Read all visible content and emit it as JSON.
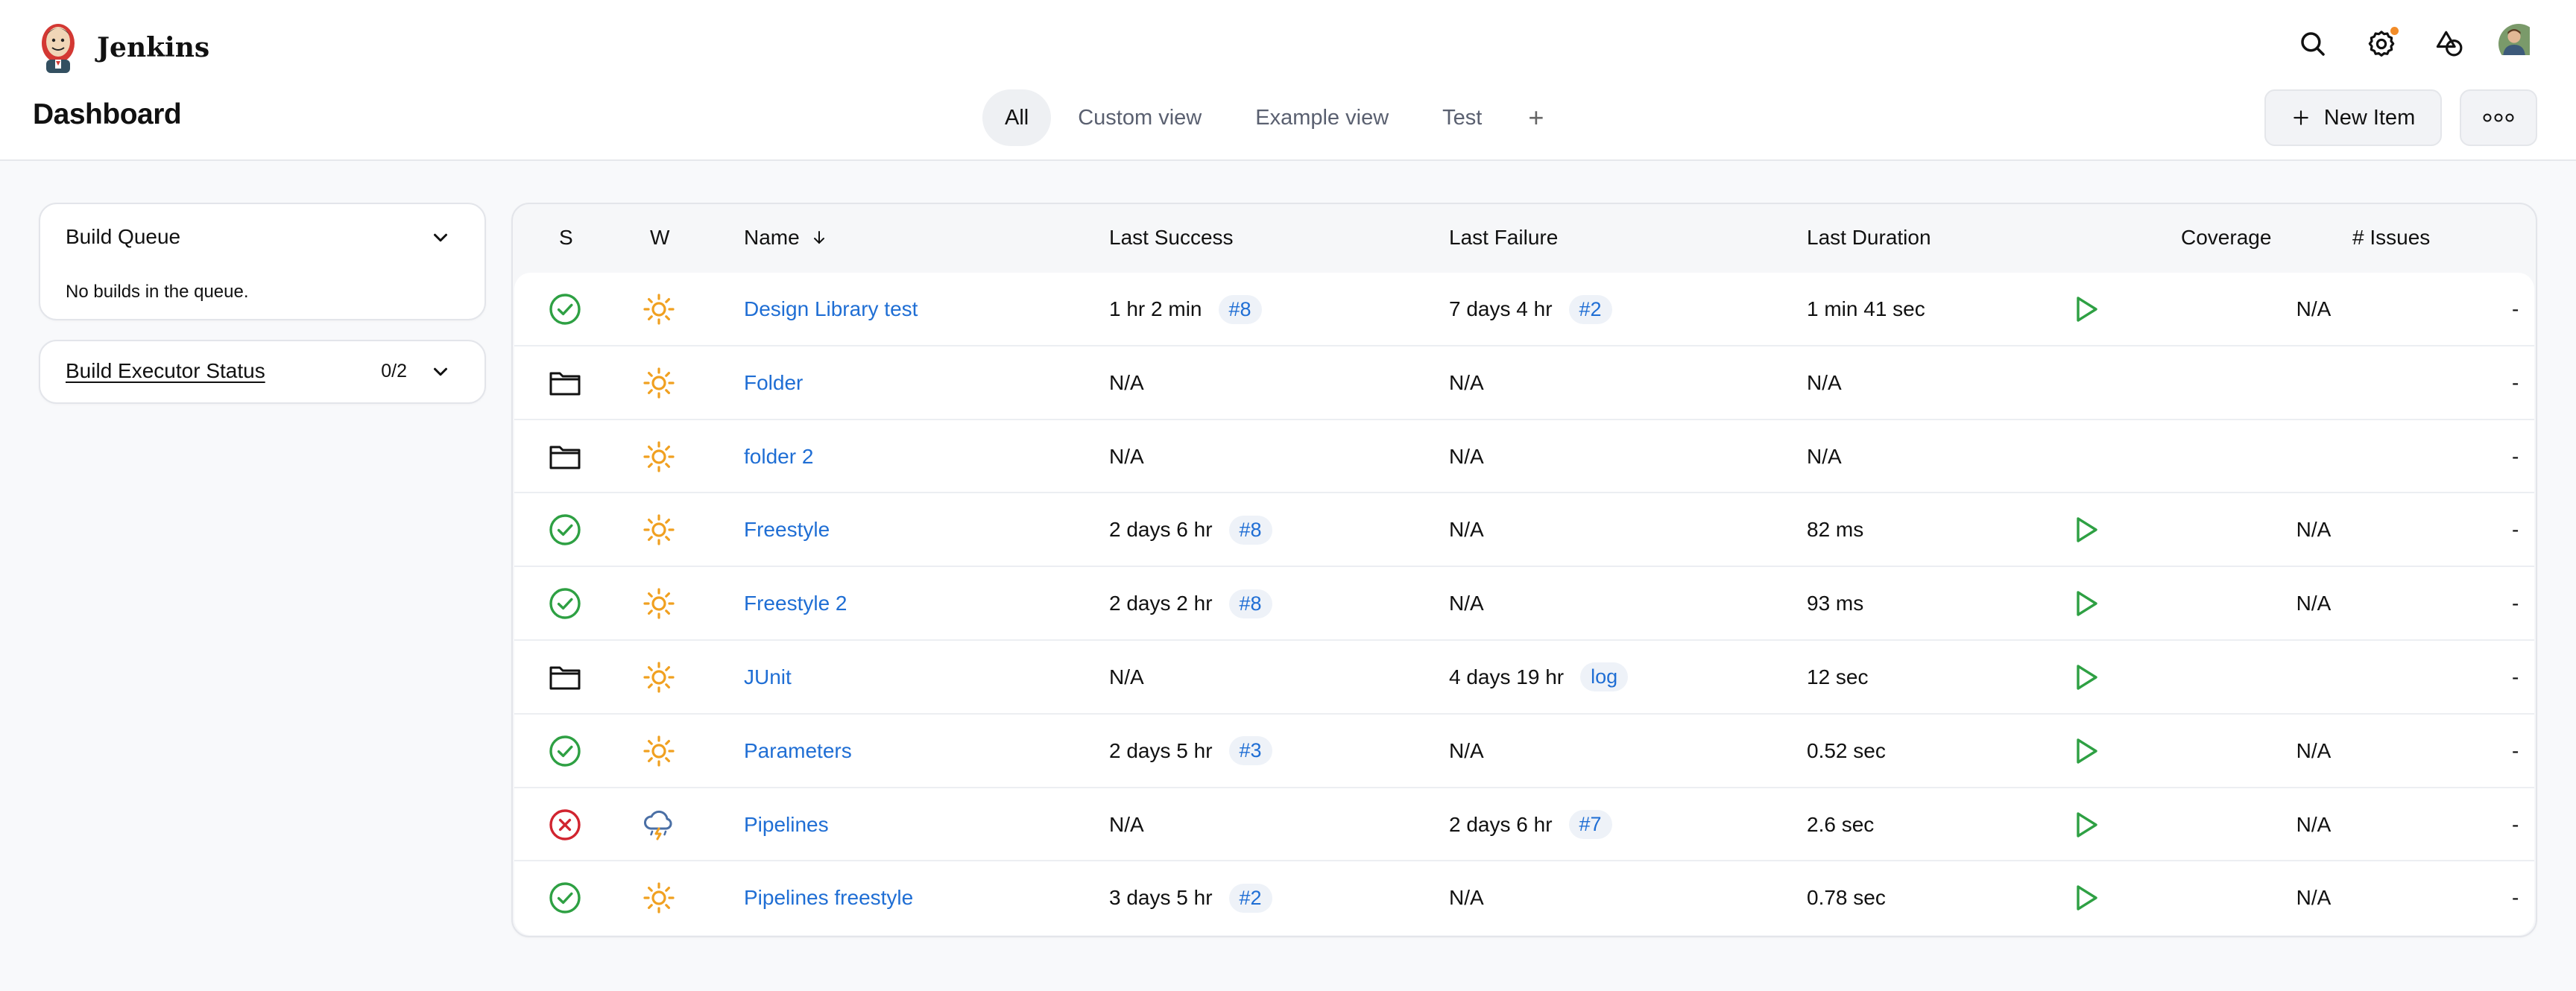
{
  "app": {
    "brand": "Jenkins",
    "page_title": "Dashboard"
  },
  "tabs": [
    {
      "label": "All",
      "active": true
    },
    {
      "label": "Custom view",
      "active": false
    },
    {
      "label": "Example view",
      "active": false
    },
    {
      "label": "Test",
      "active": false
    }
  ],
  "tab_add": "+",
  "actions": {
    "new_item": "New Item"
  },
  "header_icons": [
    "search-icon",
    "gear-icon",
    "shapes-icon",
    "avatar"
  ],
  "build_queue": {
    "title": "Build Queue",
    "empty": "No builds in the queue."
  },
  "build_executor": {
    "title": "Build Executor Status",
    "count": "0/2"
  },
  "table": {
    "headers": {
      "s": "S",
      "w": "W",
      "name": "Name",
      "last_success": "Last Success",
      "last_failure": "Last Failure",
      "last_duration": "Last Duration",
      "coverage": "Coverage",
      "issues": "# Issues"
    },
    "rows": [
      {
        "status": "success",
        "weather": "sunny",
        "name": "Design Library test",
        "last_success": "1 hr 2 min",
        "success_badge": "#8",
        "last_failure": "7 days 4 hr",
        "failure_badge": "#2",
        "duration": "1 min 41 sec",
        "run": true,
        "coverage": "N/A",
        "issues": "-"
      },
      {
        "status": "folder",
        "weather": "sunny",
        "name": "Folder",
        "last_success": "N/A",
        "success_badge": "",
        "last_failure": "N/A",
        "failure_badge": "",
        "duration": "N/A",
        "run": false,
        "coverage": "",
        "issues": "-"
      },
      {
        "status": "folder",
        "weather": "sunny",
        "name": "folder 2",
        "last_success": "N/A",
        "success_badge": "",
        "last_failure": "N/A",
        "failure_badge": "",
        "duration": "N/A",
        "run": false,
        "coverage": "",
        "issues": "-"
      },
      {
        "status": "success",
        "weather": "sunny",
        "name": "Freestyle",
        "last_success": "2 days 6 hr",
        "success_badge": "#8",
        "last_failure": "N/A",
        "failure_badge": "",
        "duration": "82 ms",
        "run": true,
        "coverage": "N/A",
        "issues": "-"
      },
      {
        "status": "success",
        "weather": "sunny",
        "name": "Freestyle 2",
        "last_success": "2 days 2 hr",
        "success_badge": "#8",
        "last_failure": "N/A",
        "failure_badge": "",
        "duration": "93 ms",
        "run": true,
        "coverage": "N/A",
        "issues": "-"
      },
      {
        "status": "folder",
        "weather": "sunny",
        "name": "JUnit",
        "last_success": "N/A",
        "success_badge": "",
        "last_failure": "4 days 19 hr",
        "failure_badge": "log",
        "duration": "12 sec",
        "run": true,
        "coverage": "",
        "issues": "-"
      },
      {
        "status": "success",
        "weather": "sunny",
        "name": "Parameters",
        "last_success": "2 days 5 hr",
        "success_badge": "#3",
        "last_failure": "N/A",
        "failure_badge": "",
        "duration": "0.52 sec",
        "run": true,
        "coverage": "N/A",
        "issues": "-"
      },
      {
        "status": "failure",
        "weather": "storm",
        "name": "Pipelines",
        "last_success": "N/A",
        "success_badge": "",
        "last_failure": "2 days 6 hr",
        "failure_badge": "#7",
        "duration": "2.6 sec",
        "run": true,
        "coverage": "N/A",
        "issues": "-"
      },
      {
        "status": "success",
        "weather": "sunny",
        "name": "Pipelines freestyle",
        "last_success": "3 days 5 hr",
        "success_badge": "#2",
        "last_failure": "N/A",
        "failure_badge": "",
        "duration": "0.78 sec",
        "run": true,
        "coverage": "N/A",
        "issues": "-"
      }
    ]
  },
  "colors": {
    "link": "#1f6ed4",
    "success": "#2ea043",
    "failure": "#d1242f",
    "sunny": "#f0a020",
    "play": "#2ea043"
  }
}
